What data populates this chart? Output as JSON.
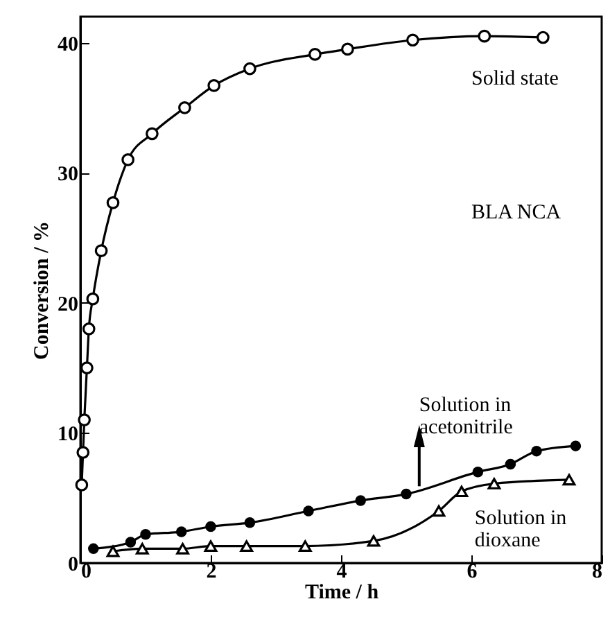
{
  "chart_data": {
    "type": "line",
    "xlabel": "Time / h",
    "ylabel": "Conversion / %",
    "xlim": [
      0,
      8
    ],
    "ylim": [
      0,
      42
    ],
    "xticks": [
      0,
      2,
      4,
      6,
      8
    ],
    "yticks": [
      0,
      10,
      20,
      30,
      40
    ],
    "grid": false,
    "line_style": "solid",
    "series": [
      {
        "name": "Solid state",
        "color": "#000000",
        "marker": "circle",
        "x": [
          0.02,
          0.04,
          0.06,
          0.1,
          0.13,
          0.19,
          0.32,
          0.5,
          0.73,
          1.1,
          1.6,
          2.05,
          2.6,
          3.6,
          4.1,
          5.1,
          6.2,
          7.1
        ],
        "values": [
          6,
          8.5,
          11,
          15,
          18,
          20.3,
          24,
          27.7,
          31,
          33,
          35,
          36.7,
          38,
          39.1,
          39.5,
          40.2,
          40.5,
          40.4
        ]
      },
      {
        "name": "Solution in\nacetonitrile",
        "color": "#000000",
        "marker": "circle",
        "x": [
          0.2,
          0.77,
          1.0,
          1.55,
          2.0,
          2.6,
          3.5,
          4.3,
          5.0,
          6.1,
          6.6,
          7.0,
          7.6
        ],
        "values": [
          1.1,
          1.6,
          2.2,
          2.4,
          2.8,
          3.1,
          4.0,
          4.8,
          5.3,
          7.0,
          7.6,
          8.6,
          9.0
        ]
      },
      {
        "name": "Solution in\ndioxane",
        "color": "#000000",
        "marker": "triangle",
        "x": [
          0.5,
          0.95,
          1.57,
          2.0,
          2.55,
          3.45,
          4.5,
          5.5,
          5.85,
          6.35,
          7.5
        ],
        "values": [
          0.9,
          1.1,
          1.1,
          1.3,
          1.3,
          1.3,
          1.7,
          4.0,
          5.5,
          6.1,
          6.4
        ]
      }
    ],
    "annotations": [
      "BLA NCA"
    ]
  }
}
